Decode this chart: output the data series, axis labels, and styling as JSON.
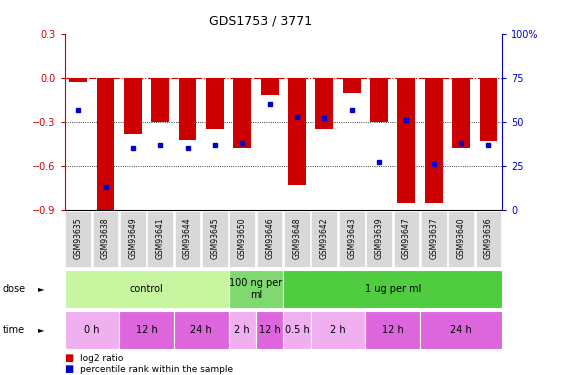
{
  "title": "GDS1753 / 3771",
  "samples": [
    "GSM93635",
    "GSM93638",
    "GSM93649",
    "GSM93641",
    "GSM93644",
    "GSM93645",
    "GSM93650",
    "GSM93646",
    "GSM93648",
    "GSM93642",
    "GSM93643",
    "GSM93639",
    "GSM93647",
    "GSM93637",
    "GSM93640",
    "GSM93636"
  ],
  "log2_ratio": [
    -0.03,
    -0.9,
    -0.38,
    -0.3,
    -0.42,
    -0.35,
    -0.48,
    -0.12,
    -0.73,
    -0.35,
    -0.1,
    -0.3,
    -0.85,
    -0.85,
    -0.48,
    -0.43
  ],
  "percentile": [
    57,
    13,
    35,
    37,
    35,
    37,
    38,
    60,
    53,
    52,
    57,
    27,
    51,
    26,
    38,
    37
  ],
  "ylim_left": [
    -0.9,
    0.3
  ],
  "ylim_right": [
    0,
    100
  ],
  "dose_groups": [
    {
      "label": "control",
      "start": 0,
      "end": 6,
      "color": "#c8f5a0"
    },
    {
      "label": "100 ng per\nml",
      "start": 6,
      "end": 8,
      "color": "#80d870"
    },
    {
      "label": "1 ug per ml",
      "start": 8,
      "end": 16,
      "color": "#50cc40"
    }
  ],
  "time_groups": [
    {
      "label": "0 h",
      "start": 0,
      "end": 2,
      "color": "#f0b0f0"
    },
    {
      "label": "12 h",
      "start": 2,
      "end": 4,
      "color": "#dd66dd"
    },
    {
      "label": "24 h",
      "start": 4,
      "end": 6,
      "color": "#dd66dd"
    },
    {
      "label": "2 h",
      "start": 6,
      "end": 7,
      "color": "#f0b0f0"
    },
    {
      "label": "12 h",
      "start": 7,
      "end": 8,
      "color": "#dd66dd"
    },
    {
      "label": "0.5 h",
      "start": 8,
      "end": 9,
      "color": "#f0b0f0"
    },
    {
      "label": "2 h",
      "start": 9,
      "end": 11,
      "color": "#f0b0f0"
    },
    {
      "label": "12 h",
      "start": 11,
      "end": 13,
      "color": "#dd66dd"
    },
    {
      "label": "24 h",
      "start": 13,
      "end": 16,
      "color": "#dd66dd"
    }
  ],
  "bar_color": "#cc0000",
  "dot_color": "#0000cc",
  "ref_line_color": "#cc0000",
  "grid_color": "#000000",
  "background": "#ffffff",
  "ylabel_left_color": "#cc0000",
  "ylabel_right_color": "#0000cc",
  "sample_box_color": "#d8d8d8"
}
